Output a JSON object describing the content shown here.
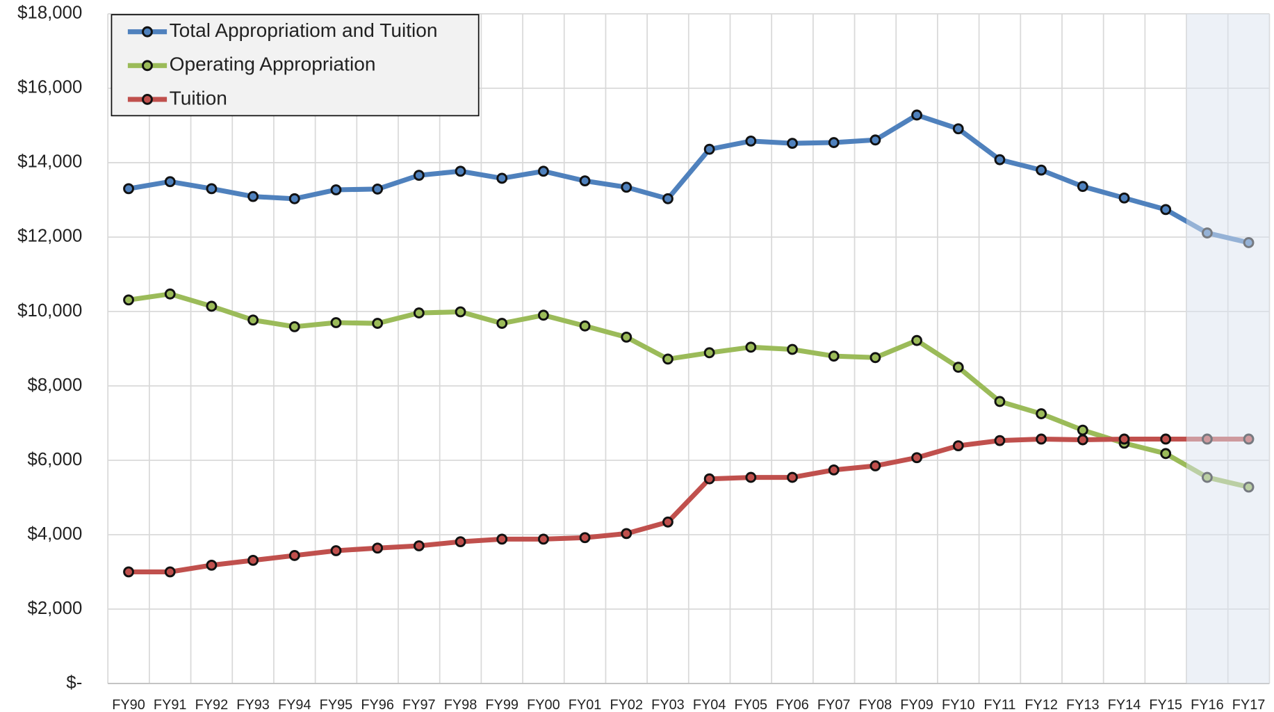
{
  "chart_data": {
    "type": "line",
    "categories": [
      "FY90",
      "FY91",
      "FY92",
      "FY93",
      "FY94",
      "FY95",
      "FY96",
      "FY97",
      "FY98",
      "FY99",
      "FY00",
      "FY01",
      "FY02",
      "FY03",
      "FY04",
      "FY05",
      "FY06",
      "FY07",
      "FY08",
      "FY09",
      "FY10",
      "FY11",
      "FY12",
      "FY13",
      "FY14",
      "FY15",
      "FY16",
      "FY17"
    ],
    "series": [
      {
        "name": "Total Appropriatiom and Tuition",
        "color": "#4f81bd",
        "values": [
          13300,
          13490,
          13300,
          13090,
          13030,
          13270,
          13290,
          13660,
          13770,
          13580,
          13770,
          13510,
          13340,
          13030,
          14360,
          14580,
          14520,
          14540,
          14610,
          15280,
          14910,
          14080,
          13800,
          13360,
          13050,
          12740,
          12110,
          11850
        ]
      },
      {
        "name": "Operating Appropriation",
        "color": "#9bbb59",
        "values": [
          10310,
          10470,
          10140,
          9770,
          9590,
          9700,
          9680,
          9960,
          9990,
          9680,
          9900,
          9610,
          9310,
          8720,
          8890,
          9040,
          8980,
          8800,
          8760,
          9220,
          8500,
          7580,
          7250,
          6810,
          6460,
          6180,
          5540,
          5280
        ]
      },
      {
        "name": "Tuition",
        "color": "#c0504d",
        "values": [
          3000,
          3000,
          3180,
          3310,
          3440,
          3570,
          3640,
          3700,
          3810,
          3880,
          3880,
          3920,
          4030,
          4340,
          5500,
          5540,
          5540,
          5740,
          5850,
          6070,
          6390,
          6530,
          6570,
          6550,
          6570,
          6570,
          6570,
          6570
        ]
      }
    ],
    "ylim": [
      0,
      18000
    ],
    "yticks": [
      {
        "value": 0,
        "label": "$-"
      },
      {
        "value": 2000,
        "label": "$2,000"
      },
      {
        "value": 4000,
        "label": "$4,000"
      },
      {
        "value": 6000,
        "label": "$6,000"
      },
      {
        "value": 8000,
        "label": "$8,000"
      },
      {
        "value": 10000,
        "label": "$10,000"
      },
      {
        "value": 12000,
        "label": "$12,000"
      },
      {
        "value": 14000,
        "label": "$14,000"
      },
      {
        "value": 16000,
        "label": "$16,000"
      },
      {
        "value": 18000,
        "label": "$18,000"
      }
    ],
    "grid": true,
    "legend": "upper left",
    "shaded_region": {
      "from": "FY16",
      "to": "FY17"
    }
  }
}
